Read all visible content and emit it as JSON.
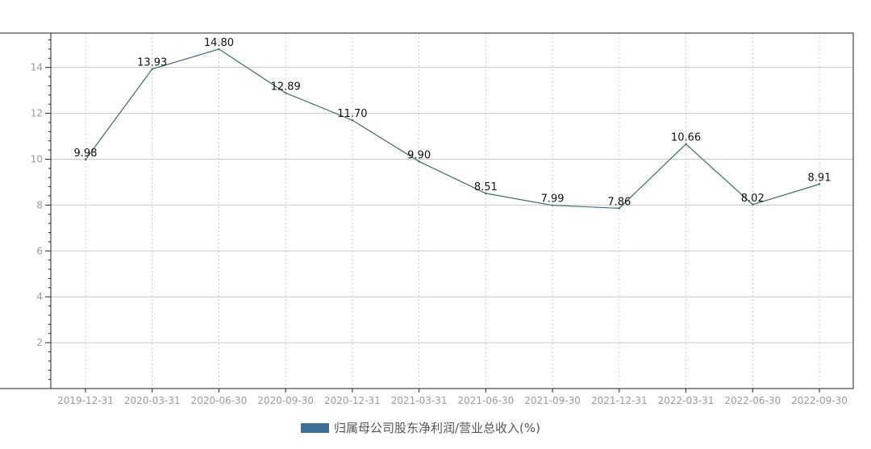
{
  "chart_data": {
    "type": "line",
    "title": "",
    "xlabel": "",
    "ylabel": "",
    "ylim": [
      0,
      15.5
    ],
    "yticks": [
      2,
      4,
      6,
      8,
      10,
      12,
      14
    ],
    "x": [
      "2019-12-31",
      "2020-03-31",
      "2020-06-30",
      "2020-09-30",
      "2020-12-31",
      "2021-03-31",
      "2021-06-30",
      "2021-09-30",
      "2021-12-31",
      "2022-03-31",
      "2022-06-30",
      "2022-09-30"
    ],
    "series": [
      {
        "name": "归属母公司股东净利润/营业总收入(%)",
        "values": [
          9.98,
          13.93,
          14.8,
          12.89,
          11.7,
          9.9,
          8.51,
          7.99,
          7.86,
          10.66,
          8.02,
          8.91
        ],
        "labels": [
          "9.98",
          "13.93",
          "14.80",
          "12.89",
          "11.70",
          "9.90",
          "8.51",
          "7.99",
          "7.86",
          "10.66",
          "8.02",
          "8.91"
        ],
        "color": "#3d6b6b",
        "legend_color": "#3e6f96"
      }
    ],
    "grid": {
      "horizontal": true,
      "vertical_dotted": true
    },
    "legend_position": "bottom-center"
  }
}
